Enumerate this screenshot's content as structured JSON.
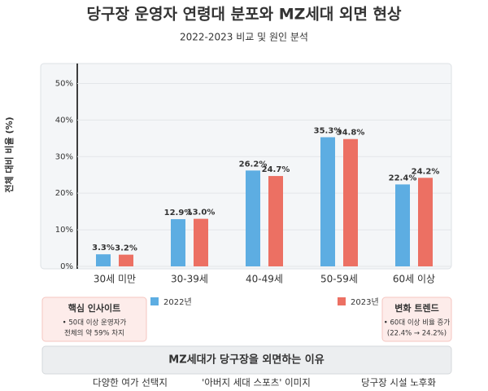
{
  "chart_data": {
    "type": "bar",
    "title": "당구장 운영자 연령대 분포와 MZ세대 외면 현상",
    "subtitle": "2022-2023 비교 및 원인 분석",
    "y_label": "전체 대비 비율 (%)",
    "categories": [
      "30세 미만",
      "30-39세",
      "40-49세",
      "50-59세",
      "60세 이상"
    ],
    "series": [
      {
        "name": "2022년",
        "color": "#5dade2",
        "values": [
          3.3,
          12.9,
          26.2,
          35.3,
          22.4
        ],
        "value_labels": [
          "3.3%",
          "12.9%",
          "26.2%",
          "35.3%",
          "22.4%"
        ]
      },
      {
        "name": "2023년",
        "color": "#ec7063",
        "values": [
          3.2,
          13.0,
          24.7,
          34.8,
          24.2
        ],
        "value_labels": [
          "3.2%",
          "13.0%",
          "24.7%",
          "34.8%",
          "24.2%"
        ]
      }
    ],
    "ylim": [
      0,
      55
    ],
    "yticks": [
      {
        "value": 0,
        "label": "0%"
      },
      {
        "value": 10,
        "label": "10%"
      },
      {
        "value": 20,
        "label": "20%"
      },
      {
        "value": 30,
        "label": "30%"
      },
      {
        "value": 40,
        "label": "40%"
      },
      {
        "value": 50,
        "label": "50%"
      }
    ],
    "grid": true,
    "insights": [
      {
        "title": "핵심 인사이트",
        "lines": [
          "• 50대 이상 운영자가",
          "전체의 약 59% 차지"
        ]
      },
      {
        "title": "변화 트렌드",
        "lines": [
          "• 60대 이상 비율 증가",
          "(22.4% → 24.2%)"
        ]
      }
    ],
    "reasons": {
      "title": "MZ세대가 당구장을 외면하는 이유",
      "items": [
        "다양한 여가 선택지",
        "'아버지 세대 스포츠' 이미지",
        "당구장 시설 노후화"
      ]
    }
  }
}
